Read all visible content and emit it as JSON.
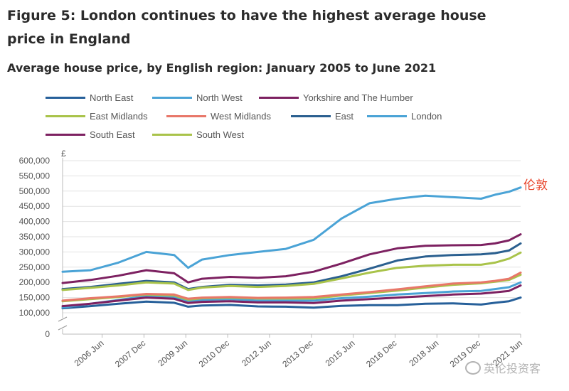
{
  "figure_title": "Figure 5: London continues to have the highest average house price in England",
  "annotation": "伦敦",
  "watermark": "英伦投资客",
  "watermark_icon": "wechat-icon",
  "chart_data": {
    "type": "line",
    "title": "Average house price, by English region: January 2005 to June 2021",
    "ylabel": "£",
    "xlabel": "",
    "ylim": [
      0,
      600000
    ],
    "y_ticks": [
      0,
      100000,
      150000,
      200000,
      250000,
      300000,
      350000,
      400000,
      450000,
      500000,
      550000,
      600000
    ],
    "y_tick_labels": [
      "0",
      "100,000",
      "150,000",
      "200,000",
      "250,000",
      "300,000",
      "350,000",
      "400,000",
      "450,000",
      "500,000",
      "550,000",
      "600,000"
    ],
    "y_axis_break": true,
    "grid": true,
    "legend_position": "top",
    "x_tick_labels": [
      "2006 Jun",
      "2007 Dec",
      "2009 Jun",
      "2010 Dec",
      "2012 Jun",
      "2013 Dec",
      "2015 Jun",
      "2016 Dec",
      "2018 Jun",
      "2019 Dec",
      "2021 Jun"
    ],
    "x_tick_positions": [
      17,
      35,
      53,
      71,
      89,
      107,
      125,
      143,
      161,
      179,
      197
    ],
    "x_points": [
      0,
      12,
      24,
      36,
      48,
      54,
      60,
      72,
      84,
      96,
      108,
      120,
      132,
      144,
      156,
      168,
      180,
      186,
      192,
      197
    ],
    "series": [
      {
        "name": "North East",
        "color": "#27609a",
        "values": [
          115000,
          122000,
          130000,
          137000,
          133000,
          120000,
          124000,
          126000,
          121000,
          120000,
          117000,
          123000,
          125000,
          125000,
          130000,
          131000,
          127000,
          133000,
          138000,
          150000
        ]
      },
      {
        "name": "North West",
        "color": "#4aa3d6",
        "values": [
          117000,
          130000,
          142000,
          155000,
          152000,
          137000,
          142000,
          145000,
          140000,
          140000,
          140000,
          148000,
          153000,
          160000,
          165000,
          170000,
          172000,
          178000,
          184000,
          200000
        ]
      },
      {
        "name": "Yorkshire and The Humber",
        "color": "#7d2161",
        "values": [
          122000,
          130000,
          140000,
          150000,
          146000,
          132000,
          136000,
          138000,
          134000,
          134000,
          132000,
          140000,
          145000,
          150000,
          155000,
          160000,
          163000,
          167000,
          172000,
          190000
        ]
      },
      {
        "name": "East Midlands",
        "color": "#a9c34a",
        "values": [
          138000,
          145000,
          152000,
          160000,
          157000,
          143000,
          148000,
          150000,
          147000,
          147000,
          147000,
          157000,
          165000,
          173000,
          183000,
          192000,
          197000,
          202000,
          208000,
          225000
        ]
      },
      {
        "name": "West Midlands",
        "color": "#e87769",
        "values": [
          140000,
          148000,
          154000,
          162000,
          160000,
          146000,
          150000,
          152000,
          149000,
          150000,
          152000,
          160000,
          168000,
          177000,
          187000,
          196000,
          200000,
          205000,
          212000,
          232000
        ]
      },
      {
        "name": "East",
        "color": "#2a5f8f",
        "values": [
          178000,
          185000,
          195000,
          205000,
          200000,
          178000,
          185000,
          192000,
          190000,
          193000,
          200000,
          220000,
          245000,
          272000,
          285000,
          290000,
          292000,
          296000,
          305000,
          328000
        ]
      },
      {
        "name": "London",
        "color": "#4aa3d6",
        "values": [
          235000,
          240000,
          265000,
          300000,
          290000,
          248000,
          275000,
          290000,
          300000,
          310000,
          340000,
          410000,
          460000,
          475000,
          485000,
          480000,
          475000,
          488000,
          498000,
          512000
        ]
      },
      {
        "name": "South East",
        "color": "#7d2161",
        "values": [
          198000,
          208000,
          222000,
          240000,
          230000,
          200000,
          212000,
          218000,
          215000,
          220000,
          235000,
          262000,
          292000,
          312000,
          320000,
          322000,
          323000,
          328000,
          338000,
          358000
        ]
      },
      {
        "name": "South West",
        "color": "#a9c34a",
        "values": [
          175000,
          182000,
          190000,
          200000,
          196000,
          175000,
          183000,
          188000,
          185000,
          188000,
          195000,
          213000,
          232000,
          248000,
          255000,
          258000,
          258000,
          265000,
          278000,
          298000
        ]
      }
    ]
  }
}
